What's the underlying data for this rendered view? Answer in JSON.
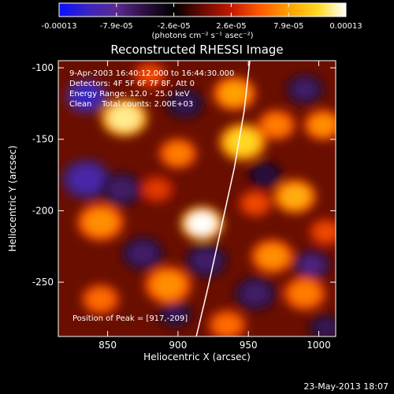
{
  "colorbar": {
    "tick_labels": [
      "-0.00013",
      "-7.9e-05",
      "-2.6e-05",
      "2.6e-05",
      "7.9e-05",
      "0.00013"
    ],
    "min": -0.00013,
    "max": 0.00013,
    "units_label": "(photons cm⁻² s⁻¹ asec⁻²)",
    "colormap_stops": [
      "#0a10ff",
      "#3a25c0",
      "#5a2a90",
      "#2c0f40",
      "#000000",
      "#6a0a00",
      "#c01a00",
      "#ff5a00",
      "#ffa000",
      "#ffd820",
      "#ffffff"
    ]
  },
  "chart_data": {
    "type": "heatmap",
    "title": "Reconstructed RHESSI Image",
    "xlabel": "Heliocentric X (arcsec)",
    "ylabel": "Heliocentric Y (arcsec)",
    "xlim": [
      815,
      1012
    ],
    "ylim": [
      -288,
      -95
    ],
    "xticks": [
      850,
      900,
      950,
      1000
    ],
    "xtick_labels": [
      "850",
      "900",
      "950",
      "1000"
    ],
    "yticks": [
      -100,
      -150,
      -200,
      -250
    ],
    "ytick_labels": [
      "-100",
      "-150",
      "-200",
      "-250"
    ],
    "annotations": [
      "9-Apr-2003 16:40:12.000 to 16:44:30.000",
      "Detectors: 4F 5F 6F 7F 8F, Att 0",
      "Energy Range: 12.0 - 25.0 keV",
      "Clean    Total counts: 2.00E+03"
    ],
    "peak_label": "Position of Peak = [917,-209]",
    "peak_position": [
      917,
      -209
    ],
    "limb_points": [
      [
        913,
        -288
      ],
      [
        921,
        -255
      ],
      [
        930,
        -215
      ],
      [
        940,
        -170
      ],
      [
        947,
        -130
      ],
      [
        951,
        -95
      ]
    ],
    "limb_color": "#ffffff",
    "hotspots": [
      {
        "x": 917,
        "y": -209,
        "v": 1.0,
        "r": 10
      },
      {
        "x": 862,
        "y": -135,
        "v": 0.9,
        "r": 11
      },
      {
        "x": 946,
        "y": -152,
        "v": 0.8,
        "r": 11
      },
      {
        "x": 940,
        "y": -118,
        "v": 0.6,
        "r": 10
      },
      {
        "x": 983,
        "y": -190,
        "v": 0.65,
        "r": 10
      },
      {
        "x": 900,
        "y": -160,
        "v": 0.5,
        "r": 9
      },
      {
        "x": 967,
        "y": -232,
        "v": 0.55,
        "r": 10
      },
      {
        "x": 970,
        "y": -140,
        "v": 0.5,
        "r": 9
      },
      {
        "x": 1003,
        "y": -140,
        "v": 0.55,
        "r": 9
      },
      {
        "x": 990,
        "y": -258,
        "v": 0.5,
        "r": 10
      },
      {
        "x": 845,
        "y": -208,
        "v": 0.55,
        "r": 11
      },
      {
        "x": 893,
        "y": -252,
        "v": 0.55,
        "r": 11
      },
      {
        "x": 845,
        "y": -262,
        "v": 0.45,
        "r": 9
      },
      {
        "x": 935,
        "y": -280,
        "v": 0.45,
        "r": 9
      },
      {
        "x": 880,
        "y": -105,
        "v": 0.35,
        "r": 8
      },
      {
        "x": 1005,
        "y": -215,
        "v": 0.35,
        "r": 8
      },
      {
        "x": 885,
        "y": -185,
        "v": 0.3,
        "r": 8
      },
      {
        "x": 955,
        "y": -195,
        "v": 0.35,
        "r": 8
      }
    ],
    "coldspots": [
      {
        "x": 835,
        "y": -120,
        "v": -0.8,
        "r": 10
      },
      {
        "x": 835,
        "y": -178,
        "v": -0.7,
        "r": 12
      },
      {
        "x": 860,
        "y": -185,
        "v": -0.5,
        "r": 10
      },
      {
        "x": 875,
        "y": -230,
        "v": -0.5,
        "r": 10
      },
      {
        "x": 905,
        "y": -125,
        "v": -0.45,
        "r": 9
      },
      {
        "x": 920,
        "y": -235,
        "v": -0.5,
        "r": 10
      },
      {
        "x": 898,
        "y": -272,
        "v": -0.45,
        "r": 8
      },
      {
        "x": 955,
        "y": -258,
        "v": -0.5,
        "r": 10
      },
      {
        "x": 995,
        "y": -238,
        "v": -0.55,
        "r": 9
      },
      {
        "x": 990,
        "y": -115,
        "v": -0.5,
        "r": 9
      },
      {
        "x": 962,
        "y": -175,
        "v": -0.4,
        "r": 8
      },
      {
        "x": 1005,
        "y": -282,
        "v": -0.45,
        "r": 8
      }
    ]
  },
  "footer": {
    "date": "23-May-2013 18:07"
  }
}
